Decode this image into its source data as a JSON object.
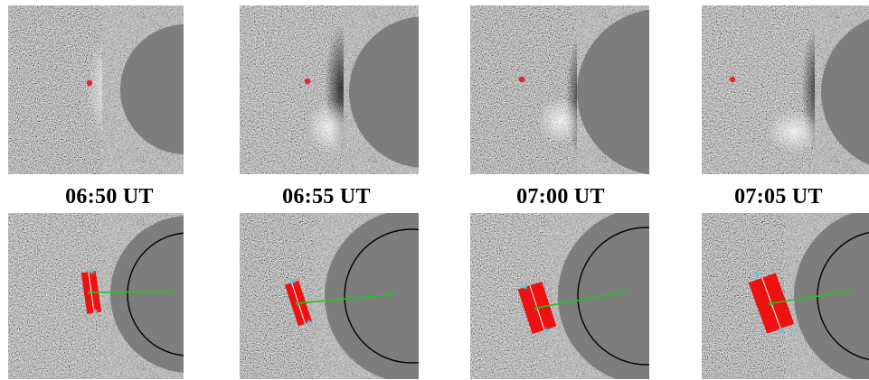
{
  "labels": {
    "col1": "06:50 UT",
    "col2": "06:55 UT",
    "col3": "07:00 UT",
    "col4": "07:05 UT"
  },
  "colors": {
    "background": "#ffffff",
    "occulter_disk": "#7d7d7d",
    "solar_limb_circle": "#000000",
    "marker_dot": "#e8232a",
    "slit_rectangle": "#ee1111",
    "slit_center_line": "#ffffff",
    "direction_line": "#22c51e",
    "endpoint_star": "#4ec9ee"
  },
  "panels": [
    {
      "row": "top",
      "time": "06:50 UT",
      "content": "running-difference image with red marker dot"
    },
    {
      "row": "top",
      "time": "06:55 UT",
      "content": "running-difference image with red marker dot"
    },
    {
      "row": "top",
      "time": "07:00 UT",
      "content": "running-difference image with red marker dot"
    },
    {
      "row": "top",
      "time": "07:05 UT",
      "content": "running-difference image with red marker dot"
    },
    {
      "row": "bottom",
      "time": "06:50 UT",
      "content": "image with red slit box, green direction line, cyan endpoints"
    },
    {
      "row": "bottom",
      "time": "06:55 UT",
      "content": "image with red slit box, green direction line, cyan endpoints"
    },
    {
      "row": "bottom",
      "time": "07:00 UT",
      "content": "image with red slit box, green direction line, cyan endpoints"
    },
    {
      "row": "bottom",
      "time": "07:05 UT",
      "content": "image with red slit box, green direction line, cyan endpoints"
    }
  ]
}
